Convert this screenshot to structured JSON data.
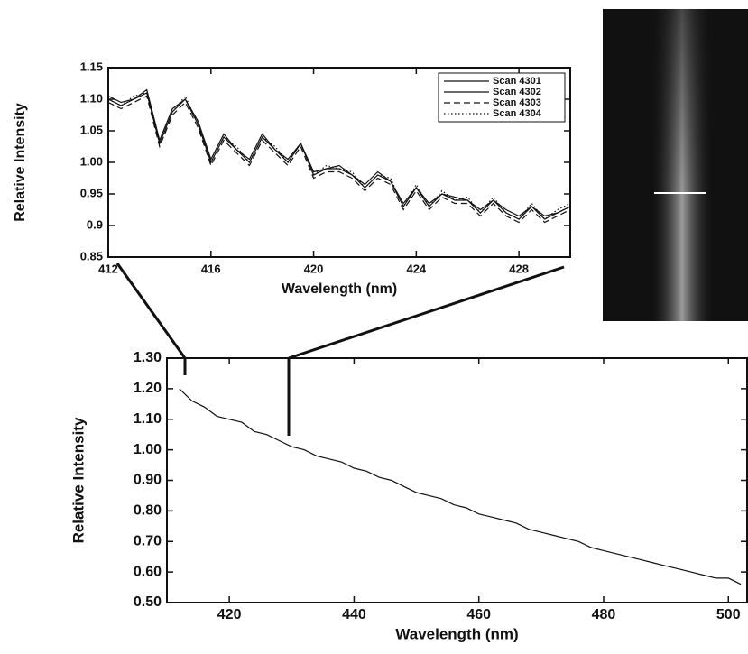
{
  "chart_data": [
    {
      "type": "line",
      "xlabel": "Wavelength (nm)",
      "ylabel": "Relative Intensity",
      "x": [
        412,
        412.5,
        413,
        413.5,
        414,
        414.5,
        415,
        415.5,
        416,
        416.5,
        417,
        417.5,
        418,
        418.5,
        419,
        419.5,
        420,
        420.5,
        421,
        421.5,
        422,
        422.5,
        423,
        423.5,
        424,
        424.5,
        425,
        425.5,
        426,
        426.5,
        427,
        427.5,
        428,
        428.5,
        429,
        429.5,
        430
      ],
      "series": [
        {
          "name": "Scan 4301",
          "color": "#111111",
          "linestyle": "solid",
          "values": [
            1.1,
            1.09,
            1.1,
            1.11,
            1.03,
            1.08,
            1.1,
            1.06,
            1.0,
            1.04,
            1.02,
            1.0,
            1.04,
            1.02,
            1.0,
            1.03,
            0.98,
            0.99,
            0.99,
            0.98,
            0.96,
            0.98,
            0.97,
            0.93,
            0.96,
            0.93,
            0.95,
            0.94,
            0.94,
            0.92,
            0.94,
            0.92,
            0.91,
            0.93,
            0.91,
            0.92,
            0.93
          ]
        },
        {
          "name": "Scan 4302",
          "color": "#111111",
          "linestyle": "solid",
          "values": [
            1.105,
            1.095,
            1.1,
            1.115,
            1.035,
            1.085,
            1.1,
            1.065,
            1.005,
            1.045,
            1.02,
            1.005,
            1.045,
            1.02,
            1.005,
            1.03,
            0.985,
            0.99,
            0.995,
            0.98,
            0.965,
            0.985,
            0.97,
            0.935,
            0.96,
            0.935,
            0.95,
            0.945,
            0.94,
            0.925,
            0.94,
            0.925,
            0.915,
            0.93,
            0.915,
            0.92,
            0.93
          ]
        },
        {
          "name": "Scan 4303",
          "color": "#111111",
          "linestyle": "dashed",
          "values": [
            1.095,
            1.085,
            1.095,
            1.105,
            1.025,
            1.075,
            1.095,
            1.055,
            0.995,
            1.035,
            1.015,
            0.995,
            1.035,
            1.015,
            0.995,
            1.025,
            0.975,
            0.985,
            0.985,
            0.975,
            0.955,
            0.975,
            0.965,
            0.925,
            0.955,
            0.925,
            0.945,
            0.935,
            0.935,
            0.915,
            0.935,
            0.915,
            0.905,
            0.925,
            0.905,
            0.915,
            0.925
          ]
        },
        {
          "name": "Scan 4304",
          "color": "#111111",
          "linestyle": "dotted",
          "values": [
            1.1,
            1.09,
            1.105,
            1.11,
            1.03,
            1.08,
            1.105,
            1.06,
            1.0,
            1.04,
            1.025,
            1.0,
            1.04,
            1.025,
            1.0,
            1.03,
            0.98,
            0.995,
            0.99,
            0.985,
            0.96,
            0.98,
            0.975,
            0.93,
            0.965,
            0.93,
            0.955,
            0.94,
            0.945,
            0.92,
            0.945,
            0.92,
            0.91,
            0.935,
            0.91,
            0.925,
            0.935
          ]
        }
      ],
      "xlim": [
        412,
        430
      ],
      "ylim": [
        0.85,
        1.15
      ],
      "xticks": [
        412,
        416,
        420,
        424,
        428
      ],
      "yticks": [
        0.85,
        0.9,
        0.95,
        {
          "value": 1,
          "label": "1.00"
        },
        1.05,
        {
          "value": 1.1,
          "label": "1.10"
        },
        1.15
      ],
      "legend": "upper right"
    },
    {
      "type": "line",
      "xlabel": "Wavelength (nm)",
      "ylabel": "Relative Intensity",
      "x": [
        412,
        414,
        416,
        418,
        420,
        422,
        424,
        426,
        428,
        430,
        432,
        434,
        436,
        438,
        440,
        442,
        444,
        446,
        448,
        450,
        452,
        454,
        456,
        458,
        460,
        462,
        464,
        466,
        468,
        470,
        472,
        474,
        476,
        478,
        480,
        482,
        484,
        486,
        488,
        490,
        492,
        494,
        496,
        498,
        500,
        502
      ],
      "series": [
        {
          "color": "#111111",
          "linestyle": "solid",
          "values": [
            1.2,
            1.16,
            1.14,
            1.11,
            1.1,
            1.09,
            1.06,
            1.05,
            1.03,
            1.01,
            1.0,
            0.98,
            0.97,
            0.96,
            0.94,
            0.93,
            0.91,
            0.9,
            0.88,
            0.86,
            0.85,
            0.84,
            0.82,
            0.81,
            0.79,
            0.78,
            0.77,
            0.76,
            0.74,
            0.73,
            0.72,
            0.71,
            0.7,
            0.68,
            0.67,
            0.66,
            0.65,
            0.64,
            0.63,
            0.62,
            0.61,
            0.6,
            0.59,
            0.58,
            0.58,
            0.56
          ]
        }
      ],
      "xlim": [
        410,
        503
      ],
      "ylim": [
        0.5,
        1.3
      ],
      "xticks": [
        420,
        440,
        460,
        480,
        500
      ],
      "yticks": [
        {
          "value": 0.5,
          "label": "0.50"
        },
        {
          "value": 0.6,
          "label": "0.60"
        },
        {
          "value": 0.7,
          "label": "0.70"
        },
        {
          "value": 0.8,
          "label": "0.80"
        },
        {
          "value": 0.9,
          "label": "0.90"
        },
        {
          "value": 1,
          "label": "1.00"
        },
        {
          "value": 1.1,
          "label": "1.10"
        },
        {
          "value": 1.2,
          "label": "1.20"
        },
        {
          "value": 1.3,
          "label": "1.30"
        }
      ]
    }
  ]
}
